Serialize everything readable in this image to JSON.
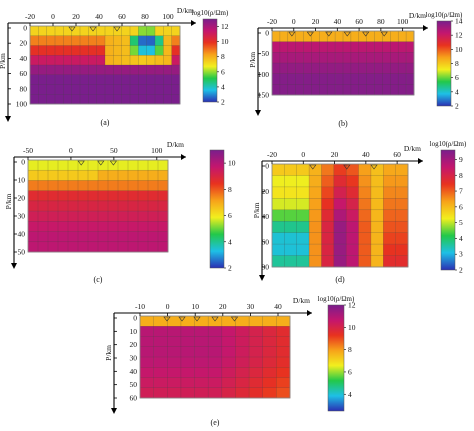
{
  "colormap": {
    "name": "rainbow",
    "stops": [
      "#2a2fb3",
      "#1ec0e6",
      "#22c84a",
      "#f2ef1e",
      "#f7a21a",
      "#e8321f",
      "#c4166e",
      "#7a1e8c"
    ]
  },
  "panels": [
    {
      "id": "a",
      "caption": "(a)",
      "xlabel": "D/km",
      "ylabel": "P/km",
      "colorbar_label": "log10(ρ/Ωm)",
      "x_ticks": [
        "-20",
        "0",
        "20",
        "40",
        "60",
        "80",
        "100"
      ],
      "y_ticks": [
        "0",
        "20",
        "40",
        "60",
        "80",
        "100"
      ],
      "cbar_ticks": [
        "12",
        "10",
        "8",
        "6",
        "4",
        "2"
      ],
      "cbar_range": [
        2,
        13
      ]
    },
    {
      "id": "b",
      "caption": "(b)",
      "xlabel": "D/km",
      "ylabel": "P/km",
      "colorbar_label": "log10(ρ/Ωm)",
      "x_ticks": [
        "-20",
        "0",
        "20",
        "40",
        "60",
        "80",
        "100"
      ],
      "y_ticks": [
        "0",
        "50",
        "100",
        "150"
      ],
      "cbar_ticks": [
        "14",
        "12",
        "10",
        "8",
        "6",
        "4",
        "2"
      ],
      "cbar_range": [
        2,
        14
      ]
    },
    {
      "id": "c",
      "caption": "(c)",
      "xlabel": "D/km",
      "ylabel": "P/km",
      "colorbar_label": "",
      "x_ticks": [
        "-50",
        "0",
        "50",
        "100"
      ],
      "y_ticks": [
        "0",
        "10",
        "20",
        "30",
        "40",
        "50"
      ],
      "cbar_ticks": [
        "10",
        "8",
        "6",
        "4",
        "2"
      ],
      "cbar_range": [
        2,
        11
      ]
    },
    {
      "id": "d",
      "caption": "(d)",
      "xlabel": "D/km",
      "ylabel": "P/km",
      "colorbar_label": "log10(ρ/Ωm)",
      "x_ticks": [
        "-20",
        "0",
        "20",
        "40",
        "60"
      ],
      "y_ticks": [
        "0",
        "20",
        "40",
        "60",
        "80"
      ],
      "cbar_ticks": [
        "9",
        "8",
        "7",
        "6",
        "5",
        "4",
        "3",
        "2"
      ],
      "cbar_range": [
        2,
        9.6
      ]
    },
    {
      "id": "e",
      "caption": "(e)",
      "xlabel": "D/km",
      "ylabel": "P/km",
      "colorbar_label": "log10(ρ/Ωm)",
      "x_ticks": [
        "-10",
        "0",
        "10",
        "20",
        "30",
        "40"
      ],
      "y_ticks": [
        "0",
        "10",
        "20",
        "30",
        "40",
        "50",
        "60"
      ],
      "cbar_ticks": [
        "12",
        "10",
        "8",
        "6",
        "4"
      ],
      "cbar_range": [
        2.5,
        12
      ]
    }
  ]
}
